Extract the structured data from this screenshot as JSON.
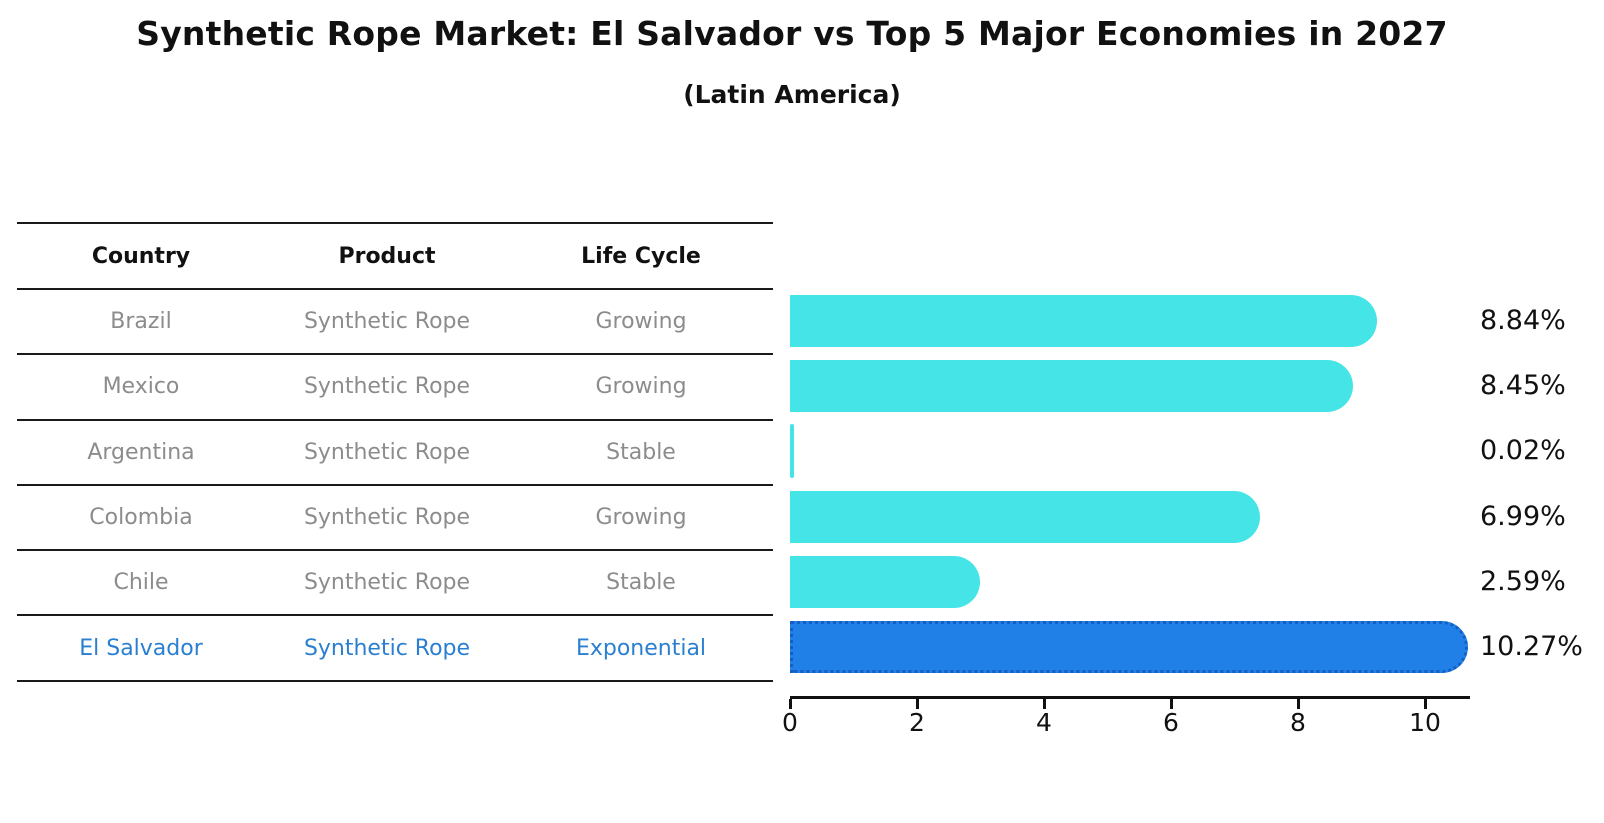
{
  "title": "Synthetic Rope Market: El Salvador vs Top 5 Major Economies in 2027",
  "subtitle": "(Latin America)",
  "table": {
    "headers": [
      "Country",
      "Product",
      "Life Cycle"
    ],
    "rows": [
      {
        "country": "Brazil",
        "product": "Synthetic Rope",
        "life_cycle": "Growing",
        "highlight": false
      },
      {
        "country": "Mexico",
        "product": "Synthetic Rope",
        "life_cycle": "Growing",
        "highlight": false
      },
      {
        "country": "Argentina",
        "product": "Synthetic Rope",
        "life_cycle": "Stable",
        "highlight": false
      },
      {
        "country": "Colombia",
        "product": "Synthetic Rope",
        "life_cycle": "Growing",
        "highlight": false
      },
      {
        "country": "Chile",
        "product": "Synthetic Rope",
        "life_cycle": "Stable",
        "highlight": false
      },
      {
        "country": "El Salvador",
        "product": "Synthetic Rope",
        "life_cycle": "Exponential",
        "highlight": true
      }
    ]
  },
  "chart_data": {
    "type": "bar",
    "orientation": "horizontal",
    "categories": [
      "Brazil",
      "Mexico",
      "Argentina",
      "Colombia",
      "Chile",
      "El Salvador"
    ],
    "values": [
      8.84,
      8.45,
      0.02,
      6.99,
      2.59,
      10.27
    ],
    "value_labels": [
      "8.84%",
      "8.45%",
      "0.02%",
      "6.99%",
      "2.59%",
      "10.27%"
    ],
    "highlight_index": 5,
    "x_ticks": [
      0,
      2,
      4,
      6,
      8,
      10
    ],
    "xlim": [
      0,
      10.8
    ],
    "grid": false,
    "legend": null,
    "bar_color": "#45e4e6",
    "highlight_bar_color": "#2080e8",
    "highlight_text_color": "#2a7fd0"
  }
}
